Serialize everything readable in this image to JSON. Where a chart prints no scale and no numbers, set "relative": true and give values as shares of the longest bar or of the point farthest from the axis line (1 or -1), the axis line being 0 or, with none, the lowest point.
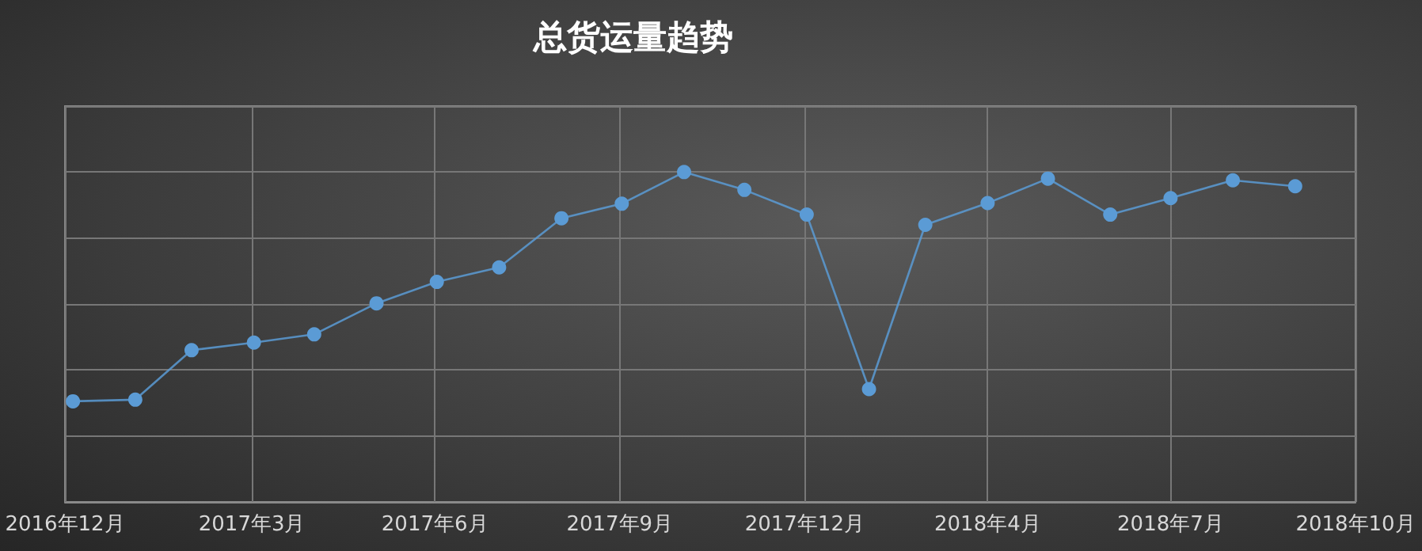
{
  "chart_data": {
    "type": "line",
    "title": "总货运量趋势",
    "relative": true,
    "x": [
      "2017-01",
      "2017-02",
      "2017-03",
      "2017-04",
      "2017-05",
      "2017-06",
      "2017-07",
      "2017-08",
      "2017-09",
      "2017-10",
      "2017-11",
      "2017-12",
      "2018-01",
      "2018-02",
      "2018-03",
      "2018-04",
      "2018-05",
      "2018-06",
      "2018-07",
      "2018-08",
      "2018-09"
    ],
    "series": [
      {
        "color": "#5b9bd5",
        "values": [
          0.305,
          0.31,
          0.46,
          0.483,
          0.508,
          0.602,
          0.667,
          0.711,
          0.86,
          0.904,
          1,
          0.946,
          0.871,
          0.342,
          0.84,
          0.906,
          0.98,
          0.871,
          0.921,
          0.975,
          0.957
        ]
      }
    ],
    "xlim": [
      "2016-12-28",
      "2018-10-01"
    ],
    "xticks": [
      {
        "value": "2016-12-28",
        "label": "2016年12月"
      },
      {
        "value": "2017-03-31",
        "label": "2017年3月"
      },
      {
        "value": "2017-06-30",
        "label": "2017年6月"
      },
      {
        "value": "2017-09-30",
        "label": "2017年9月"
      },
      {
        "value": "2017-12-31",
        "label": "2017年12月"
      },
      {
        "value": "2018-04-01",
        "label": "2018年4月"
      },
      {
        "value": "2018-07-01",
        "label": "2018年7月"
      },
      {
        "value": "2018-10-01",
        "label": "2018年10月"
      }
    ],
    "grid": true,
    "marker": "circle",
    "line_style": "solid"
  }
}
